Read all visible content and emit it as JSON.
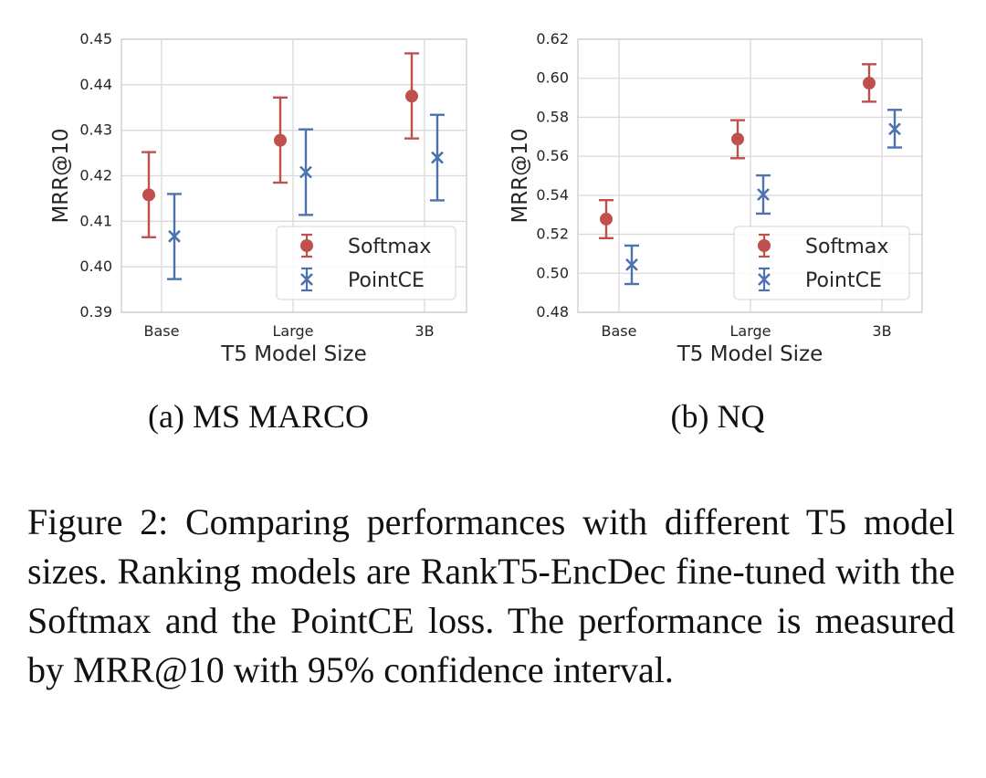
{
  "chart_data": [
    {
      "type": "scatter",
      "subcaption": "(a) MS MARCO",
      "xlabel": "T5 Model Size",
      "ylabel": "MRR@10",
      "categories": [
        "Base",
        "Large",
        "3B"
      ],
      "ylim": [
        0.39,
        0.45
      ],
      "yticks": [
        "0.39",
        "0.40",
        "0.41",
        "0.42",
        "0.43",
        "0.44",
        "0.45"
      ],
      "grid": true,
      "legend_position": "lower-right",
      "series": [
        {
          "name": "Softmax",
          "color": "#c0504d",
          "marker": "circle",
          "values": [
            0.4158,
            0.4278,
            0.4375
          ],
          "lower": [
            0.4065,
            0.4185,
            0.4282
          ],
          "upper": [
            0.4252,
            0.4372,
            0.4469
          ]
        },
        {
          "name": "PointCE",
          "color": "#4c72b0",
          "marker": "x",
          "values": [
            0.4067,
            0.4208,
            0.424
          ],
          "lower": [
            0.3973,
            0.4114,
            0.4146
          ],
          "upper": [
            0.416,
            0.4302,
            0.4334
          ]
        }
      ]
    },
    {
      "type": "scatter",
      "subcaption": "(b) NQ",
      "xlabel": "T5 Model Size",
      "ylabel": "MRR@10",
      "categories": [
        "Base",
        "Large",
        "3B"
      ],
      "ylim": [
        0.48,
        0.62
      ],
      "yticks": [
        "0.48",
        "0.50",
        "0.52",
        "0.54",
        "0.56",
        "0.58",
        "0.60",
        "0.62"
      ],
      "grid": true,
      "legend_position": "lower-right",
      "series": [
        {
          "name": "Softmax",
          "color": "#c0504d",
          "marker": "circle",
          "values": [
            0.5278,
            0.5688,
            0.5975
          ],
          "lower": [
            0.518,
            0.559,
            0.588
          ],
          "upper": [
            0.5375,
            0.5785,
            0.6072
          ]
        },
        {
          "name": "PointCE",
          "color": "#4c72b0",
          "marker": "x",
          "values": [
            0.5044,
            0.5404,
            0.574
          ],
          "lower": [
            0.4945,
            0.5306,
            0.5645
          ],
          "upper": [
            0.5142,
            0.5502,
            0.5838
          ]
        }
      ]
    }
  ],
  "caption": "Figure 2:  Comparing performances with different T5 model sizes. Ranking models are RankT5-EncDec fine-tuned with the Softmax and the PointCE loss. The performance is measured by MRR@10 with 95% confidence interval."
}
